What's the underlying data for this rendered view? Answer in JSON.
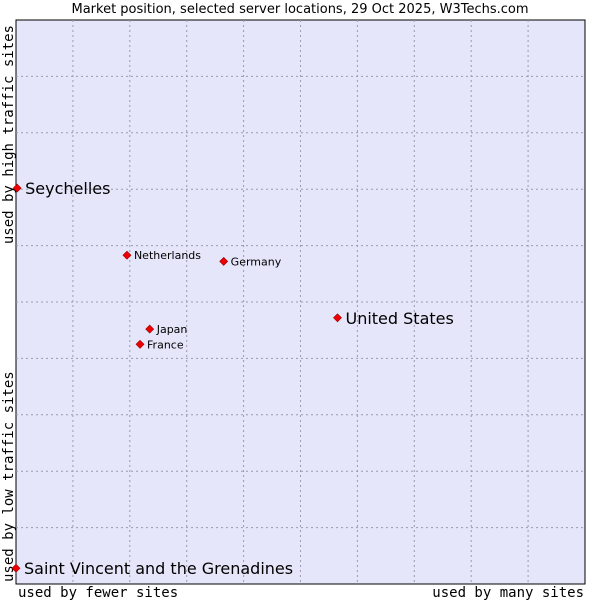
{
  "chart_data": {
    "type": "scatter",
    "title": "Market position, selected server locations, 29 Oct 2025, W3Techs.com",
    "x_axis": {
      "label_low": "used by fewer sites",
      "label_high": "used by many sites",
      "range": [
        0,
        100
      ]
    },
    "y_axis": {
      "label_low": "used by low traffic sites",
      "label_high": "used by high traffic sites",
      "range": [
        0,
        100
      ]
    },
    "grid": true,
    "point_color": "#ee0000",
    "plot_background": "#e6e6fa",
    "points": [
      {
        "name": "Seychelles",
        "x": 0.2,
        "y": 70.2,
        "label_size": "large"
      },
      {
        "name": "Netherlands",
        "x": 19.5,
        "y": 58.3,
        "label_size": "small"
      },
      {
        "name": "Germany",
        "x": 36.5,
        "y": 57.2,
        "label_size": "small"
      },
      {
        "name": "United States",
        "x": 56.5,
        "y": 47.2,
        "label_size": "large"
      },
      {
        "name": "Japan",
        "x": 23.5,
        "y": 45.2,
        "label_size": "small"
      },
      {
        "name": "France",
        "x": 21.8,
        "y": 42.5,
        "label_size": "small"
      },
      {
        "name": "Saint Vincent and the Grenadines",
        "x": 0.0,
        "y": 2.8,
        "label_size": "large"
      }
    ]
  }
}
